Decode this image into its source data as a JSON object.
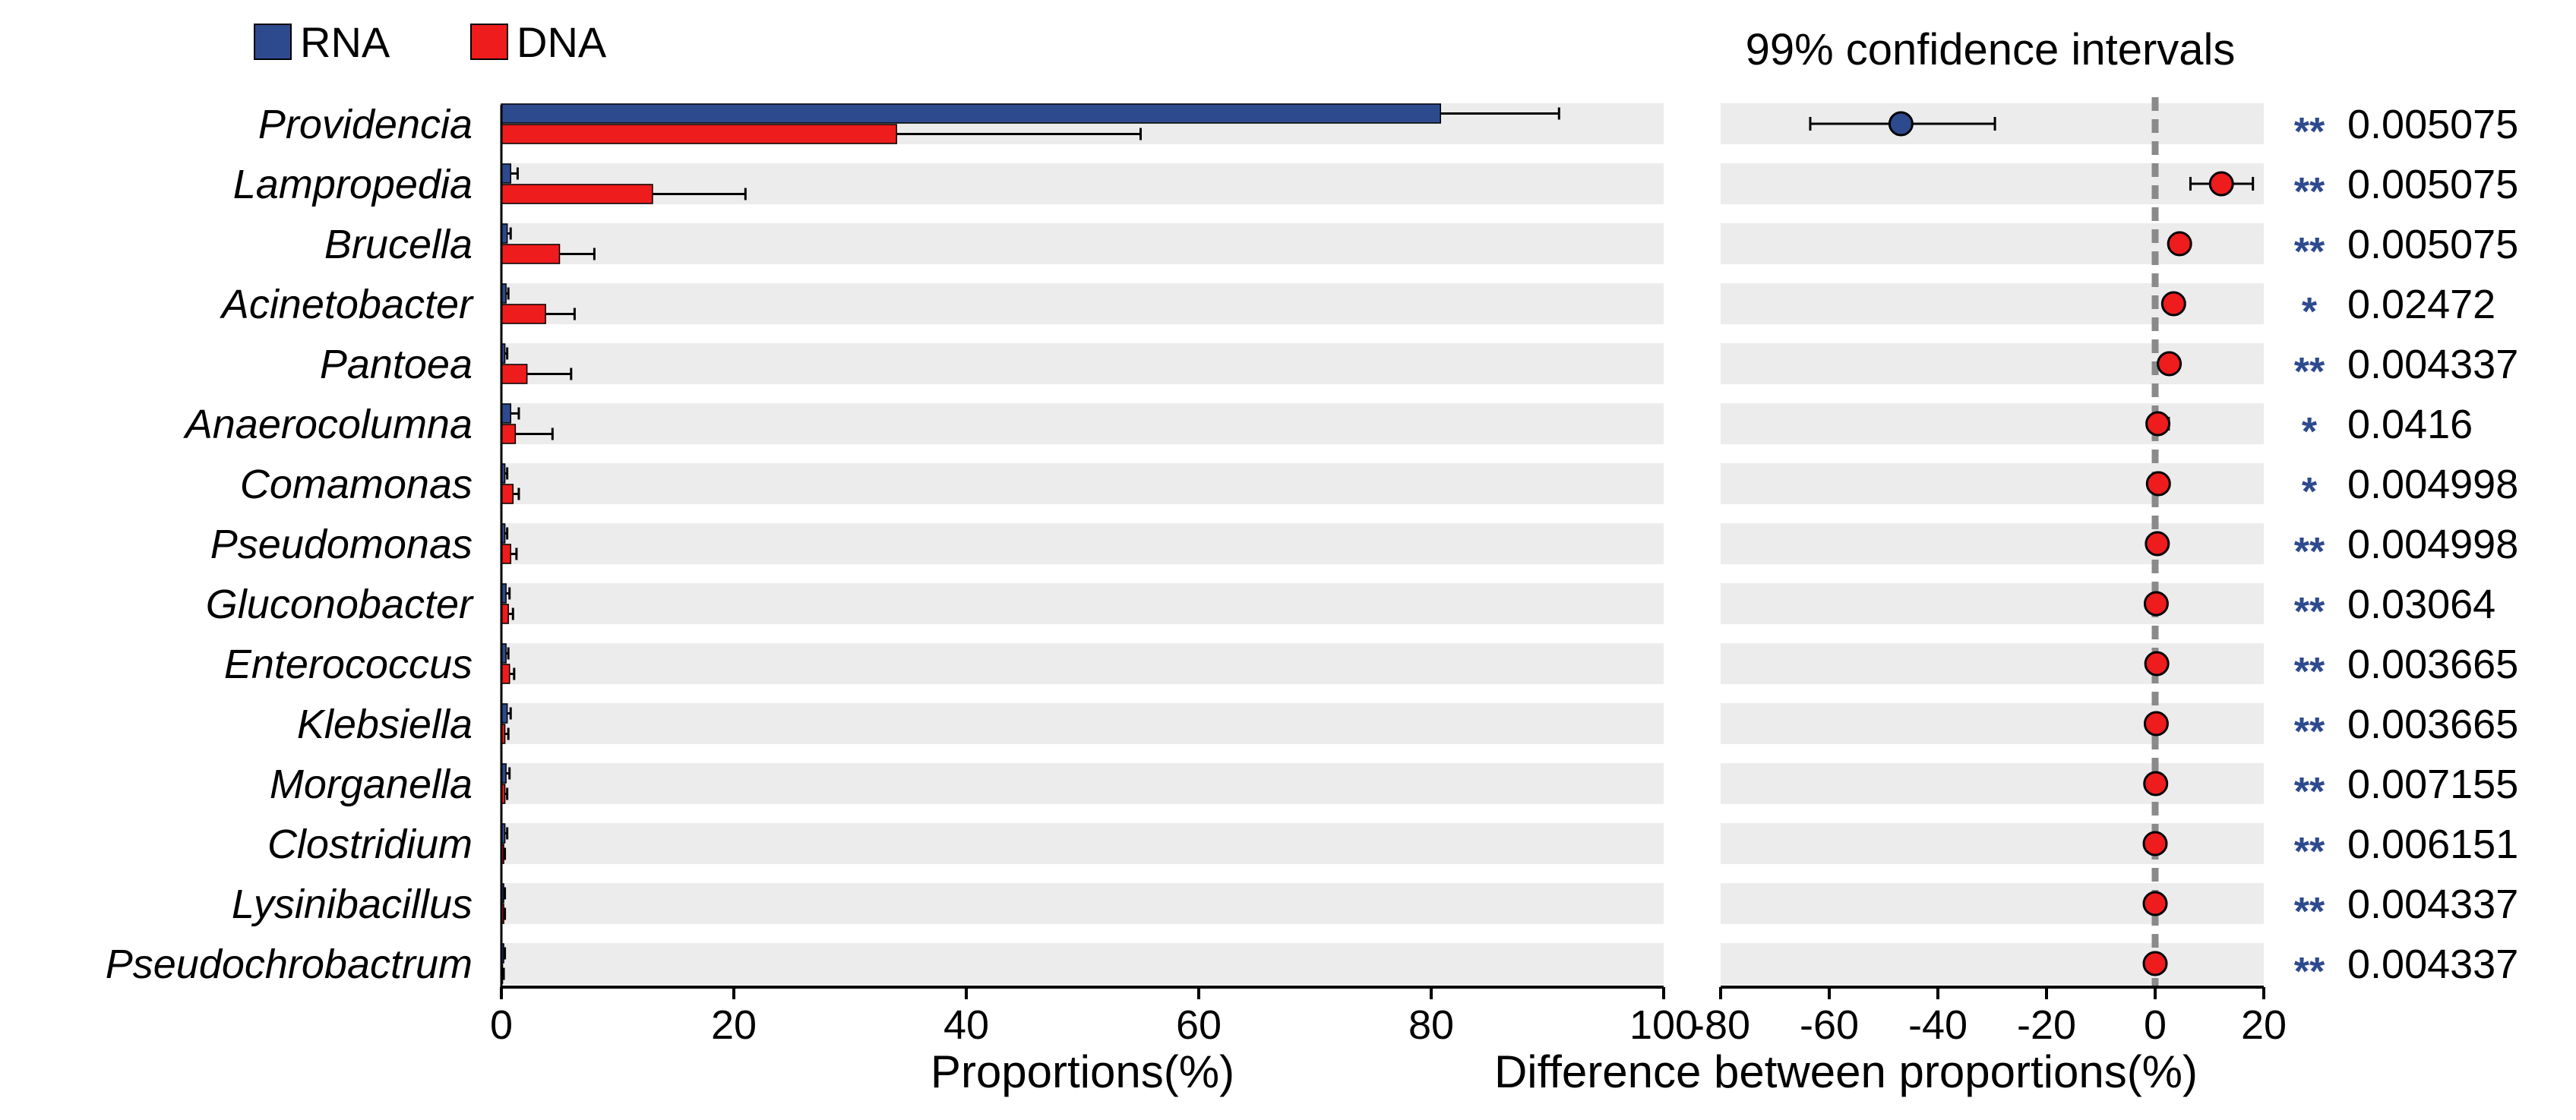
{
  "chart_data": [
    {
      "type": "bar",
      "orientation": "horizontal",
      "categories": [
        "Providencia",
        "Lampropedia",
        "Brucella",
        "Acinetobacter",
        "Pantoea",
        "Anaerocolumna",
        "Comamonas",
        "Pseudomonas",
        "Gluconobacter",
        "Enterococcus",
        "Klebsiella",
        "Morganella",
        "Clostridium",
        "Lysinibacillus",
        "Pseudochrobactrum"
      ],
      "series": [
        {
          "name": "RNA",
          "color": "#2e4a8e",
          "values": [
            80.8,
            0.8,
            0.5,
            0.4,
            0.3,
            0.8,
            0.3,
            0.3,
            0.4,
            0.4,
            0.5,
            0.4,
            0.3,
            0.2,
            0.2
          ],
          "errors": [
            10.2,
            0.6,
            0.3,
            0.2,
            0.2,
            0.7,
            0.2,
            0.2,
            0.3,
            0.2,
            0.3,
            0.3,
            0.2,
            0.1,
            0.1
          ]
        },
        {
          "name": "DNA",
          "color": "#ee1c1c",
          "values": [
            34.0,
            13.0,
            5.0,
            3.8,
            2.2,
            1.2,
            1.0,
            0.8,
            0.6,
            0.7,
            0.3,
            0.3,
            0.2,
            0.2,
            0.1
          ],
          "errors": [
            21.0,
            8.0,
            3.0,
            2.5,
            3.8,
            3.2,
            0.5,
            0.5,
            0.4,
            0.4,
            0.3,
            0.2,
            0.1,
            0.1,
            0.1
          ]
        }
      ],
      "xlabel": "Proportions(%)",
      "xlim": [
        0,
        100
      ],
      "xticks": [
        "0",
        "20",
        "40",
        "60",
        "80",
        "100"
      ],
      "legend": [
        {
          "label": "RNA",
          "color": "#2e4a8e"
        },
        {
          "label": "DNA",
          "color": "#ee1c1c"
        }
      ],
      "legend_position": "top-left",
      "grid": false,
      "row_band_color": "#ececec"
    },
    {
      "type": "scatter",
      "title": "99% confidence intervals",
      "xlabel": "Difference between proportions(%)",
      "xlim": [
        -80,
        20
      ],
      "xticks": [
        "-80",
        "-60",
        "-40",
        "-20",
        "0",
        "20"
      ],
      "reference_line_at": 0,
      "points": [
        {
          "category": "Providencia",
          "diff": -46.8,
          "ci": [
            -63.5,
            -29.5
          ],
          "color": "#2e4a8e",
          "stars": "**",
          "p": "0.005075"
        },
        {
          "category": "Lampropedia",
          "diff": 12.2,
          "ci": [
            6.5,
            18.0
          ],
          "color": "#ee1c1c",
          "stars": "**",
          "p": "0.005075"
        },
        {
          "category": "Brucella",
          "diff": 4.5,
          "ci": [
            3.5,
            5.5
          ],
          "color": "#ee1c1c",
          "stars": "**",
          "p": "0.005075"
        },
        {
          "category": "Acinetobacter",
          "diff": 3.4,
          "ci": [
            2.5,
            4.5
          ],
          "color": "#ee1c1c",
          "stars": "*",
          "p": "0.02472"
        },
        {
          "category": "Pantoea",
          "diff": 2.6,
          "ci": [
            1.5,
            4.0
          ],
          "color": "#ee1c1c",
          "stars": "**",
          "p": "0.004337"
        },
        {
          "category": "Anaerocolumna",
          "diff": 0.5,
          "ci": [
            -0.8,
            2.5
          ],
          "color": "#ee1c1c",
          "stars": "*",
          "p": "0.0416"
        },
        {
          "category": "Comamonas",
          "diff": 0.6,
          "ci": [
            0.1,
            1.2
          ],
          "color": "#ee1c1c",
          "stars": "*",
          "p": "0.004998"
        },
        {
          "category": "Pseudomonas",
          "diff": 0.4,
          "ci": [
            0.0,
            0.9
          ],
          "color": "#ee1c1c",
          "stars": "**",
          "p": "0.004998"
        },
        {
          "category": "Gluconobacter",
          "diff": 0.2,
          "ci": [
            -0.2,
            0.6
          ],
          "color": "#ee1c1c",
          "stars": "**",
          "p": "0.03064"
        },
        {
          "category": "Enterococcus",
          "diff": 0.3,
          "ci": [
            0.0,
            0.6
          ],
          "color": "#ee1c1c",
          "stars": "**",
          "p": "0.003665"
        },
        {
          "category": "Klebsiella",
          "diff": 0.2,
          "ci": [
            0.0,
            0.4
          ],
          "color": "#ee1c1c",
          "stars": "**",
          "p": "0.003665"
        },
        {
          "category": "Morganella",
          "diff": 0.1,
          "ci": [
            -0.1,
            0.3
          ],
          "color": "#ee1c1c",
          "stars": "**",
          "p": "0.007155"
        },
        {
          "category": "Clostridium",
          "diff": 0.0,
          "ci": [
            -0.1,
            0.1
          ],
          "color": "#ee1c1c",
          "stars": "**",
          "p": "0.006151"
        },
        {
          "category": "Lysinibacillus",
          "diff": 0.0,
          "ci": [
            -0.1,
            0.1
          ],
          "color": "#ee1c1c",
          "stars": "**",
          "p": "0.004337"
        },
        {
          "category": "Pseudochrobactrum",
          "diff": 0.0,
          "ci": [
            -0.1,
            0.1
          ],
          "color": "#ee1c1c",
          "stars": "**",
          "p": "0.004337"
        }
      ],
      "star_color": "#2e4a8e",
      "reference_line_color": "#8a8a8a",
      "row_band_color": "#ececec"
    }
  ]
}
